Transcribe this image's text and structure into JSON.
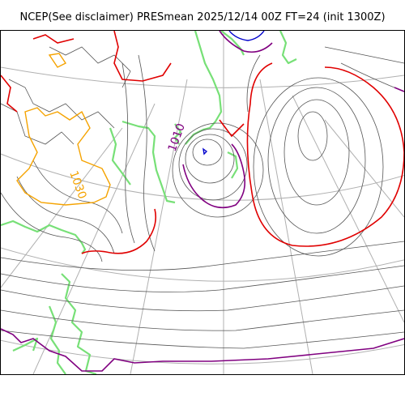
{
  "title": "NCEP(See disclaimer) PRESmean 2025/12/14 00Z FT=24 (init 1300Z)",
  "map": {
    "contour_labels": [
      {
        "text": "1030",
        "color": "#f5a300"
      },
      {
        "text": "1010",
        "color": "#800080"
      }
    ],
    "colors": {
      "graticule": "#b0b0b0",
      "isobar": "#555555",
      "isobar_red": "#e00000",
      "isobar_orange": "#f5a300",
      "isobar_purple": "#800080",
      "isobar_blue": "#0000cc",
      "coastline": "#77e077"
    }
  }
}
